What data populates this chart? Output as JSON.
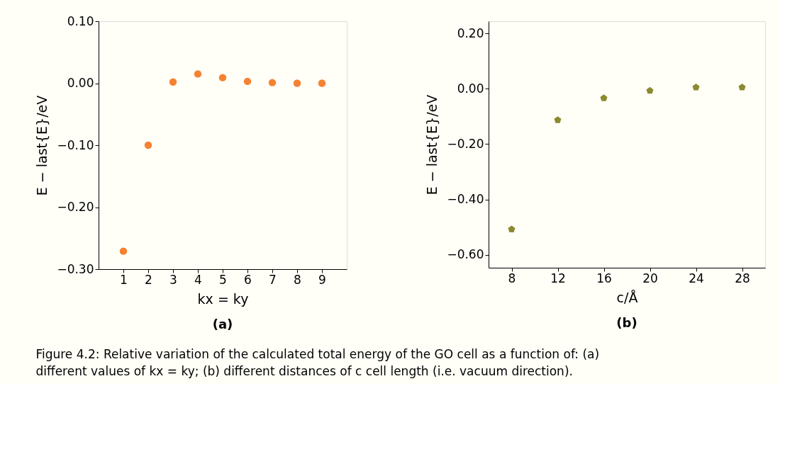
{
  "chart_data": [
    {
      "type": "scatter",
      "title": "(a)",
      "xlabel": "kx = ky",
      "ylabel": "E − last{E}/eV",
      "marker": "circle",
      "grid": false,
      "legend": false,
      "x": [
        1,
        2,
        3,
        4,
        5,
        6,
        7,
        8,
        9
      ],
      "series": [
        {
          "color": "#f58231",
          "values": [
            -0.271,
            -0.1,
            0.002,
            0.015,
            0.009,
            0.003,
            0.001,
            0.0,
            0.0
          ]
        }
      ],
      "xlim": [
        0,
        10
      ],
      "xticks": [
        1,
        2,
        3,
        4,
        5,
        6,
        7,
        8,
        9
      ],
      "ylim": [
        -0.3,
        0.1
      ],
      "yticks": [
        {
          "value": -0.3,
          "label": "−0.30"
        },
        {
          "value": -0.2,
          "label": "−0.20"
        },
        {
          "value": -0.1,
          "label": "−0.10"
        },
        {
          "value": 0.0,
          "label": "0.00"
        },
        {
          "value": 0.1,
          "label": "0.10"
        }
      ]
    },
    {
      "type": "scatter",
      "title": "(b)",
      "xlabel": "c/Å",
      "ylabel": "E − last{E}/eV",
      "grid": false,
      "legend": false,
      "x": [
        8,
        12,
        16,
        20,
        24,
        28
      ],
      "series": [
        {
          "color": "#8b8a2e",
          "values": [
            -0.508,
            -0.113,
            -0.034,
            -0.007,
            0.005,
            0.005
          ]
        }
      ],
      "xlim": [
        6,
        30
      ],
      "xticks": [
        8,
        12,
        16,
        20,
        24,
        28
      ],
      "ylim": [
        -0.647,
        0.244
      ],
      "yticks": [
        {
          "value": -0.6,
          "label": "−0.60"
        },
        {
          "value": -0.4,
          "label": "−0.40"
        },
        {
          "value": -0.2,
          "label": "−0.20"
        },
        {
          "value": 0.0,
          "label": "0.00"
        },
        {
          "value": 0.2,
          "label": "0.20"
        }
      ],
      "annotations": [
        "Figure 4.2: Relative variation of the calculated total energy of the GO cell as a function of: (a)",
        "different values of kx = ky; (b) different distances of c cell length (i.e. vacuum direction)."
      ]
    }
  ]
}
